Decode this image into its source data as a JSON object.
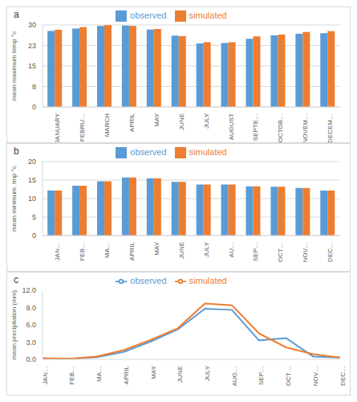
{
  "chart_data": [
    {
      "type": "bar",
      "title": "a",
      "ylabel": "mean maximum temp °c",
      "categories": [
        "JANUARY",
        "FEBRU…",
        "MARCH",
        "APRIL",
        "MAY",
        "JUNE",
        "JULY",
        "AUGUST",
        "SEPTE…",
        "OCTOB…",
        "NOVEM…",
        "DECEM…"
      ],
      "series": [
        {
          "name": "observed",
          "color": "#5b9bd5",
          "values": [
            27.8,
            28.7,
            29.6,
            29.8,
            28.3,
            26.1,
            23.2,
            23.4,
            24.9,
            26.2,
            26.8,
            27.0
          ]
        },
        {
          "name": "simulated",
          "color": "#ed7d31",
          "values": [
            28.2,
            29.2,
            29.9,
            29.6,
            28.5,
            25.9,
            23.7,
            23.7,
            25.8,
            26.5,
            27.4,
            27.7
          ]
        }
      ],
      "ylim": [
        0,
        30
      ],
      "yticks": [
        0,
        {
          "value": 7.5,
          "label": "8"
        },
        15,
        {
          "value": 22.5,
          "label": "23"
        },
        30
      ],
      "grid": true,
      "legend": "top"
    },
    {
      "type": "bar",
      "title": "b",
      "ylabel": "mean minimum. tmp °c",
      "categories": [
        "JAN…",
        "FEB…",
        "MA…",
        "APRIL",
        "MAY",
        "JUNE",
        "JULY",
        "AU…",
        "SEP…",
        "OCT…",
        "NOV…",
        "DEC…"
      ],
      "series": [
        {
          "name": "observed",
          "color": "#5b9bd5",
          "values": [
            12.2,
            13.5,
            14.7,
            15.7,
            15.5,
            14.5,
            13.8,
            13.8,
            13.3,
            13.2,
            12.9,
            12.2
          ]
        },
        {
          "name": "simulated",
          "color": "#ed7d31",
          "values": [
            12.2,
            13.5,
            14.7,
            15.7,
            15.5,
            14.5,
            13.8,
            13.8,
            13.3,
            13.2,
            12.9,
            12.2
          ]
        }
      ],
      "ylim": [
        0,
        20
      ],
      "yticks": [
        0,
        5,
        10,
        15,
        20
      ],
      "grid": true,
      "legend": "top"
    },
    {
      "type": "line",
      "title": "c",
      "ylabel": "mean precipitation (mm)",
      "categories": [
        "JAN…",
        "FEB…",
        "MA…",
        "APRIL",
        "MAY",
        "JUNE",
        "JULY",
        "AUG…",
        "SEP…",
        "OCT…",
        "NOV…",
        "DEC…"
      ],
      "series": [
        {
          "name": "observed",
          "color": "#5b9bd5",
          "values": [
            0.1,
            0.1,
            0.4,
            1.3,
            3.1,
            5.2,
            8.8,
            8.6,
            3.3,
            3.7,
            0.5,
            0.3
          ]
        },
        {
          "name": "simulated",
          "color": "#ed7d31",
          "values": [
            0.2,
            0.1,
            0.5,
            1.6,
            3.4,
            5.4,
            9.7,
            9.4,
            4.5,
            2.1,
            0.9,
            0.3
          ]
        }
      ],
      "ylim": [
        0,
        12
      ],
      "yticks": [
        {
          "value": 0,
          "label": "0.0"
        },
        {
          "value": 3,
          "label": "3.0"
        },
        {
          "value": 6,
          "label": "6.0"
        },
        {
          "value": 9,
          "label": "9.0"
        },
        {
          "value": 12,
          "label": "12.0"
        }
      ],
      "grid": false,
      "legend": "top"
    }
  ]
}
